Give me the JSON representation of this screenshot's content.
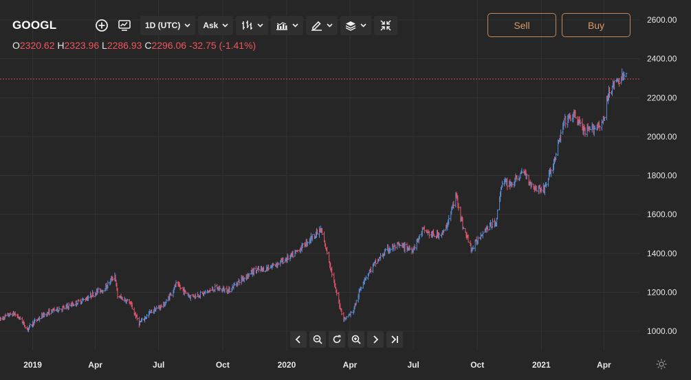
{
  "symbol": "GOOGL",
  "toolbar": {
    "interval_label": "1D (UTC)",
    "price_type_label": "Ask"
  },
  "ohlc": {
    "open_key": "O",
    "open": "2320.62",
    "high_key": "H",
    "high": "2323.96",
    "low_key": "L",
    "low": "2286.93",
    "close_key": "C",
    "close": "2296.06",
    "change": "-32.75 (-1.41%)"
  },
  "buttons": {
    "sell": "Sell",
    "buy": "Buy"
  },
  "colors": {
    "background": "#262626",
    "grid": "#333333",
    "up": "#5b8fd6",
    "down": "#e9566a",
    "price_line": "#e04848",
    "accent": "#d99b6c"
  },
  "chart_data": {
    "type": "ohlc",
    "y_axis": {
      "ticks": [
        "2600.00",
        "2400.00",
        "2200.00",
        "2000.00",
        "1800.00",
        "1600.00",
        "1400.00",
        "1200.00",
        "1000.00"
      ],
      "range": [
        960,
        2640
      ]
    },
    "x_axis": {
      "ticks": [
        "2019",
        "Apr",
        "Jul",
        "Oct",
        "2020",
        "Apr",
        "Jul",
        "Oct",
        "2021",
        "Apr"
      ],
      "range": [
        "2018-11-15",
        "2021-05-22"
      ]
    },
    "current_price": 2296.06,
    "grid": true,
    "price_path": [
      [
        "2018-11-15",
        1060
      ],
      [
        "2018-11-25",
        1080
      ],
      [
        "2018-12-05",
        1090
      ],
      [
        "2018-12-15",
        1060
      ],
      [
        "2018-12-24",
        1010
      ],
      [
        "2019-01-01",
        1040
      ],
      [
        "2019-01-15",
        1080
      ],
      [
        "2019-02-01",
        1110
      ],
      [
        "2019-02-15",
        1120
      ],
      [
        "2019-03-01",
        1140
      ],
      [
        "2019-03-20",
        1170
      ],
      [
        "2019-04-01",
        1200
      ],
      [
        "2019-04-15",
        1220
      ],
      [
        "2019-04-29",
        1290
      ],
      [
        "2019-05-03",
        1180
      ],
      [
        "2019-05-20",
        1150
      ],
      [
        "2019-06-03",
        1040
      ],
      [
        "2019-06-20",
        1100
      ],
      [
        "2019-07-10",
        1140
      ],
      [
        "2019-07-26",
        1240
      ],
      [
        "2019-08-15",
        1180
      ],
      [
        "2019-09-01",
        1190
      ],
      [
        "2019-09-20",
        1220
      ],
      [
        "2019-10-10",
        1210
      ],
      [
        "2019-10-25",
        1260
      ],
      [
        "2019-11-15",
        1310
      ],
      [
        "2019-12-01",
        1320
      ],
      [
        "2019-12-20",
        1350
      ],
      [
        "2020-01-10",
        1390
      ],
      [
        "2020-01-25",
        1440
      ],
      [
        "2020-02-05",
        1480
      ],
      [
        "2020-02-19",
        1520
      ],
      [
        "2020-03-01",
        1380
      ],
      [
        "2020-03-12",
        1200
      ],
      [
        "2020-03-23",
        1060
      ],
      [
        "2020-04-05",
        1100
      ],
      [
        "2020-04-20",
        1260
      ],
      [
        "2020-05-05",
        1340
      ],
      [
        "2020-05-25",
        1420
      ],
      [
        "2020-06-10",
        1440
      ],
      [
        "2020-06-30",
        1420
      ],
      [
        "2020-07-15",
        1520
      ],
      [
        "2020-07-31",
        1490
      ],
      [
        "2020-08-15",
        1510
      ],
      [
        "2020-09-01",
        1700
      ],
      [
        "2020-09-10",
        1540
      ],
      [
        "2020-09-23",
        1420
      ],
      [
        "2020-10-10",
        1520
      ],
      [
        "2020-10-28",
        1560
      ],
      [
        "2020-11-05",
        1760
      ],
      [
        "2020-11-20",
        1760
      ],
      [
        "2020-12-07",
        1820
      ],
      [
        "2020-12-20",
        1740
      ],
      [
        "2021-01-05",
        1730
      ],
      [
        "2021-01-20",
        1880
      ],
      [
        "2021-02-03",
        2080
      ],
      [
        "2021-02-18",
        2110
      ],
      [
        "2021-03-05",
        2020
      ],
      [
        "2021-03-20",
        2050
      ],
      [
        "2021-04-01",
        2080
      ],
      [
        "2021-04-08",
        2240
      ],
      [
        "2021-04-22",
        2290
      ],
      [
        "2021-05-03",
        2320
      ]
    ]
  }
}
